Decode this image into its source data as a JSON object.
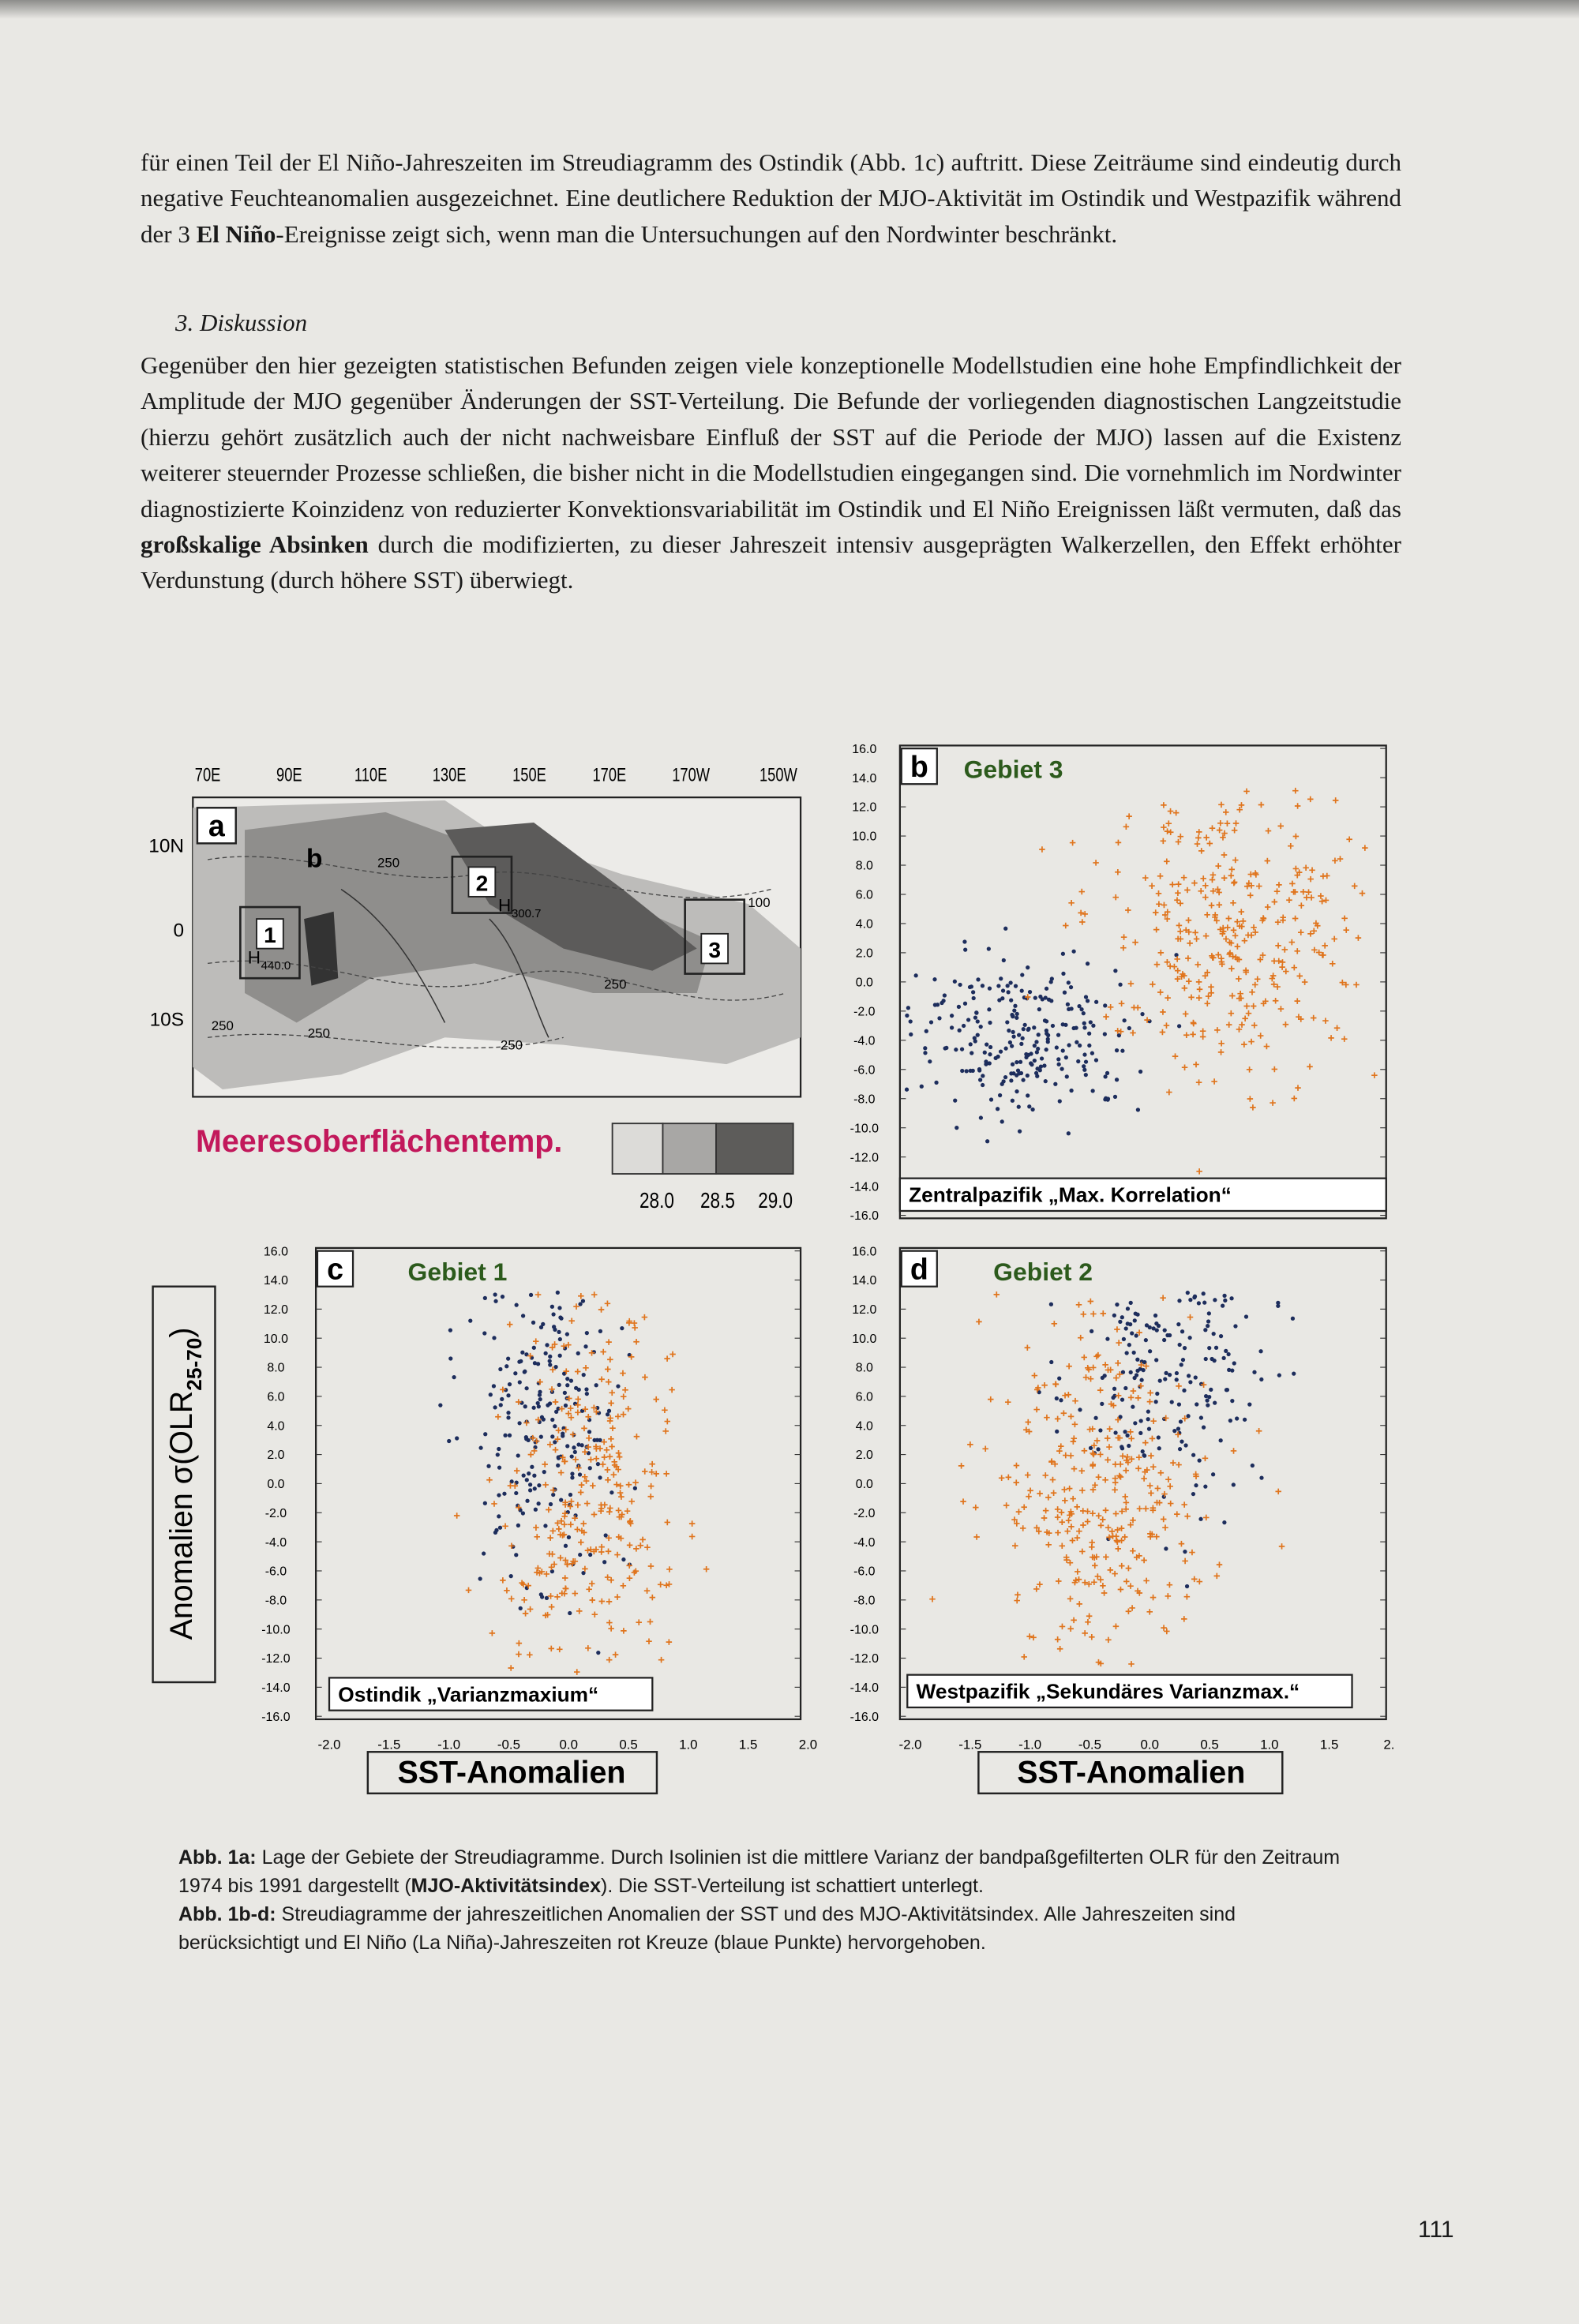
{
  "body": {
    "paragraph_1": [
      "für einen Teil der El Niño-Jahreszeiten im Streudiagramm des Ostindik (Abb. 1c) auftritt. Diese Zeiträume sind eindeutig durch negative Feuchteanomalien ausgezeichnet. Eine deutlichere Reduktion der MJO-Aktivität im Ostindik und Westpazifik während der 3 ",
      "El Niño",
      "-Ereignisse zeigt sich, wenn man die Untersuchungen auf den Nordwinter beschränkt."
    ],
    "heading": "3. Diskussion",
    "paragraph_2": [
      "Gegenüber den hier gezeigten statistischen Befunden zeigen viele konzeptionelle Modellstudien eine hohe Empfindlichkeit der Amplitude der MJO gegenüber Änderungen der SST-Verteilung. Die Befunde der vorliegenden diagnostischen Langzeitstudie (hierzu gehört zusätzlich auch der nicht nachweisbare Einfluß der SST auf die Periode der MJO) lassen auf die Existenz weiterer steuernder Prozesse schließen, die bisher nicht in die Modellstudien eingegangen sind. Die vornehmlich im Nordwinter diagnostizierte Koinzidenz von reduzierter Konvektionsvariabilität im Ostindik und El Niño Ereignissen läßt vermuten, daß das ",
      "großskalige Absinken",
      " durch die modifizierten, zu dieser Jahreszeit intensiv ausgeprägten Walkerzellen, den Effekt erhöhter Verdunstung (durch höhere SST) überwiegt."
    ]
  },
  "figure": {
    "map": {
      "label": "a",
      "inset_label": "b",
      "lon_ticks": [
        "70E",
        "90E",
        "110E",
        "130E",
        "150E",
        "170E",
        "170W",
        "150W"
      ],
      "lat_ticks": [
        "10N",
        "0",
        "10S"
      ],
      "region_labels": [
        "1",
        "2",
        "3"
      ],
      "contour_labels": [
        "250",
        "250",
        "250",
        "250",
        "250",
        "100"
      ],
      "maxima": [
        [
          "H",
          "300.7"
        ],
        [
          "H",
          "440.0"
        ]
      ]
    },
    "sst_legend": {
      "title": "Meeresoberflächentemp.",
      "ticks": [
        "28.0",
        "28.5",
        "29.0"
      ]
    },
    "y_axis_label": [
      "Anomalien σ(OLR",
      "25-70",
      ")"
    ],
    "x_axis_label": "SST-Anomalien",
    "yticks": [
      "16.0",
      "14.0",
      "12.0",
      "10.0",
      "8.0",
      "6.0",
      "4.0",
      "2.0",
      "0.0",
      "-2.0",
      "-4.0",
      "-6.0",
      "-8.0",
      "-10.0",
      "-12.0",
      "-14.0",
      "-16.0"
    ],
    "xticks_left": [
      "-2.0",
      "-1.5",
      "-1.0",
      "-0.5",
      "0.0",
      "0.5",
      "1.0",
      "1.5",
      "2.0"
    ],
    "xticks_right": [
      "-2.0",
      "-1.5",
      "-1.0",
      "-0.5",
      "0.0",
      "0.5",
      "1.0",
      "1.5",
      "2."
    ],
    "panels": [
      {
        "label": "b",
        "title": "Gebiet 3",
        "region": "Zentralpazifik „Max. Korrelation“"
      },
      {
        "label": "c",
        "title": "Gebiet 1",
        "region": "Ostindik „Varianzmaxium“"
      },
      {
        "label": "d",
        "title": "Gebiet 2",
        "region": "Westpazifik „Sekundäres Varianzmax.“"
      }
    ]
  },
  "caption": {
    "part_1": [
      "Abb. 1a:",
      " Lage der Gebiete der Streudiagramme. Durch Isolinien ist die mittlere Varianz der bandpaßgefilterten OLR für den Zeitraum 1974 bis 1991 dargestellt (",
      "MJO-Aktivitätsindex",
      "). Die SST-Verteilung ist schattiert unterlegt."
    ],
    "part_2": [
      "Abb. 1b-d:",
      " Streudiagramme der jahreszeitlichen Anomalien der SST und des MJO-Aktivitätsindex. Alle Jahreszeiten sind berücksichtigt und El Niño (La Niña)-Jahreszeiten rot Kreuze (blaue Punkte) hervorgehoben."
    ]
  },
  "page_number": "111"
}
